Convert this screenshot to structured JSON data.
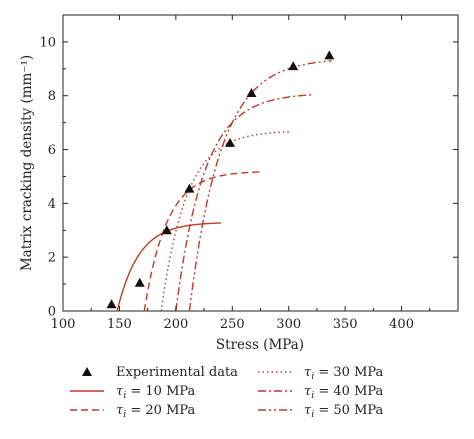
{
  "chart_data": {
    "type": "line",
    "title": "",
    "xlabel": "Stress (MPa)",
    "ylabel": "Matrix cracking density (mm⁻¹)",
    "xlim": [
      100,
      450
    ],
    "ylim": [
      0,
      11
    ],
    "xticks": [
      100,
      150,
      200,
      250,
      300,
      350,
      400
    ],
    "yticks": [
      0,
      2,
      4,
      6,
      8,
      10
    ],
    "grid": false,
    "legend_position": "bottom",
    "accent_color": "#c0392b",
    "marker_color": "#111111",
    "experimental": {
      "name": "Experimental data",
      "x": [
        143,
        168,
        192,
        212,
        248,
        267,
        304,
        336
      ],
      "y": [
        0.25,
        1.05,
        3.0,
        4.55,
        6.25,
        8.1,
        9.1,
        9.5
      ]
    },
    "series": [
      {
        "name": "τ",
        "subscript": "i",
        "suffix": " = 10 MPa",
        "dash": "solid",
        "x0": 148,
        "xend": 240,
        "ymax": 3.3,
        "k": 0.052
      },
      {
        "name": "τ",
        "subscript": "i",
        "suffix": " = 20 MPa",
        "dash": "dashed",
        "x0": 172,
        "xend": 275,
        "ymax": 5.2,
        "k": 0.05
      },
      {
        "name": "τ",
        "subscript": "i",
        "suffix": " = 30 MPa",
        "dash": "dotted",
        "x0": 187,
        "xend": 302,
        "ymax": 6.7,
        "k": 0.045
      },
      {
        "name": "τ",
        "subscript": "i",
        "suffix": " = 40 MPa",
        "dash": "dashdot",
        "x0": 200,
        "xend": 322,
        "ymax": 8.1,
        "k": 0.04
      },
      {
        "name": "τ",
        "subscript": "i",
        "suffix": " = 50 MPa",
        "dash": "dashdotdot",
        "x0": 212,
        "xend": 338,
        "ymax": 9.4,
        "k": 0.036
      }
    ]
  }
}
